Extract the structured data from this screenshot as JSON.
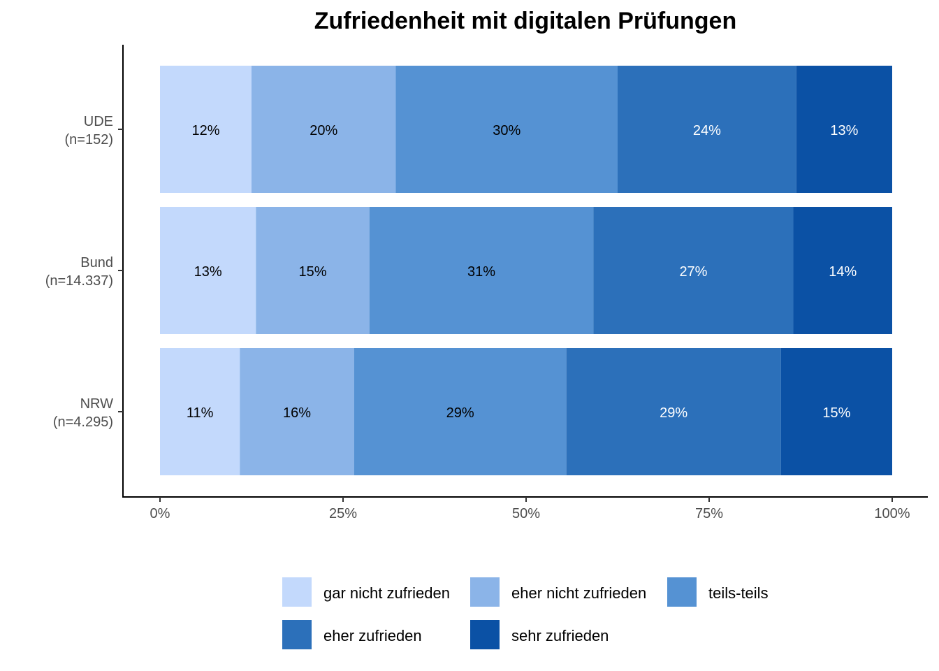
{
  "chart_data": {
    "type": "bar",
    "orientation": "horizontal",
    "stacked": true,
    "title": "Zufriedenheit mit digitalen Prüfungen",
    "xlabel": "",
    "ylabel": "",
    "xlim": [
      0,
      100
    ],
    "x_ticks": [
      0,
      25,
      50,
      75,
      100
    ],
    "x_tick_labels": [
      "0%",
      "25%",
      "50%",
      "75%",
      "100%"
    ],
    "grid": false,
    "legend_position": "bottom",
    "categories": [
      {
        "label": "UDE",
        "sub": "(n=152)"
      },
      {
        "label": "Bund",
        "sub": "(n=14.337)"
      },
      {
        "label": "NRW",
        "sub": "(n=4.295)"
      }
    ],
    "series": [
      {
        "name": "gar nicht zufrieden",
        "color": "#c3d9fc",
        "label_color": "#000000",
        "values": [
          12.5,
          13.1,
          10.9
        ],
        "labels": [
          "12%",
          "13%",
          "11%"
        ]
      },
      {
        "name": "eher nicht zufrieden",
        "color": "#8bb4e8",
        "label_color": "#000000",
        "values": [
          19.7,
          15.5,
          15.6
        ],
        "labels": [
          "20%",
          "15%",
          "16%"
        ]
      },
      {
        "name": "teils-teils",
        "color": "#5592d3",
        "label_color": "#000000",
        "values": [
          30.3,
          30.6,
          29.0
        ],
        "labels": [
          "30%",
          "31%",
          "29%"
        ]
      },
      {
        "name": "eher zufrieden",
        "color": "#2c70ba",
        "label_color": "#ffffff",
        "values": [
          24.4,
          27.3,
          29.3
        ],
        "labels": [
          "24%",
          "27%",
          "29%"
        ]
      },
      {
        "name": "sehr zufrieden",
        "color": "#0b51a5",
        "label_color": "#ffffff",
        "values": [
          13.1,
          13.5,
          15.2
        ],
        "labels": [
          "13%",
          "14%",
          "15%"
        ]
      }
    ]
  }
}
